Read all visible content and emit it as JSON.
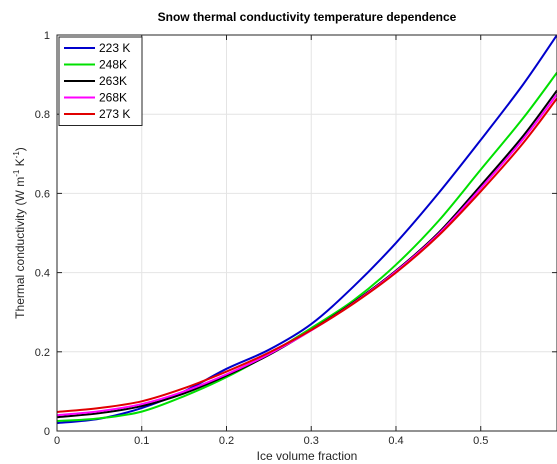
{
  "chart_data": {
    "type": "line",
    "title": "Snow thermal conductivity temperature dependence",
    "xlabel": "Ice volume fraction",
    "ylabel_main": "Thermal conductivity (W m",
    "ylabel_exp1": "-1",
    "ylabel_mid": " K",
    "ylabel_exp2": "-1",
    "ylabel_end": ")",
    "xlim": [
      0,
      0.59
    ],
    "ylim": [
      0,
      1
    ],
    "xticks": [
      "0",
      "0.1",
      "0.2",
      "0.3",
      "0.4",
      "0.5"
    ],
    "xtick_values": [
      0,
      0.1,
      0.2,
      0.3,
      0.4,
      0.5
    ],
    "yticks": [
      "0",
      "0.2",
      "0.4",
      "0.6",
      "0.8",
      "1"
    ],
    "ytick_values": [
      0,
      0.2,
      0.4,
      0.6,
      0.8,
      1.0
    ],
    "grid": true,
    "legend_position": "top-left",
    "x": [
      0,
      0.05,
      0.1,
      0.15,
      0.2,
      0.25,
      0.3,
      0.35,
      0.4,
      0.45,
      0.5,
      0.55,
      0.59
    ],
    "series": [
      {
        "name": "223 K",
        "color": "#0000cc",
        "values": [
          0.02,
          0.031,
          0.058,
          0.1,
          0.157,
          0.205,
          0.27,
          0.365,
          0.475,
          0.6,
          0.735,
          0.875,
          1.0
        ]
      },
      {
        "name": "248K",
        "color": "#00e000",
        "values": [
          0.025,
          0.032,
          0.049,
          0.088,
          0.136,
          0.194,
          0.26,
          0.33,
          0.42,
          0.53,
          0.66,
          0.79,
          0.905
        ]
      },
      {
        "name": "263K",
        "color": "#000000",
        "values": [
          0.035,
          0.045,
          0.063,
          0.095,
          0.14,
          0.192,
          0.255,
          0.325,
          0.405,
          0.5,
          0.62,
          0.745,
          0.86
        ]
      },
      {
        "name": "268K",
        "color": "#ff00ff",
        "values": [
          0.04,
          0.05,
          0.068,
          0.1,
          0.143,
          0.194,
          0.254,
          0.323,
          0.403,
          0.497,
          0.613,
          0.737,
          0.85
        ]
      },
      {
        "name": "273 K",
        "color": "#e00000",
        "values": [
          0.048,
          0.058,
          0.075,
          0.108,
          0.15,
          0.198,
          0.255,
          0.322,
          0.4,
          0.493,
          0.605,
          0.727,
          0.84
        ]
      }
    ]
  }
}
